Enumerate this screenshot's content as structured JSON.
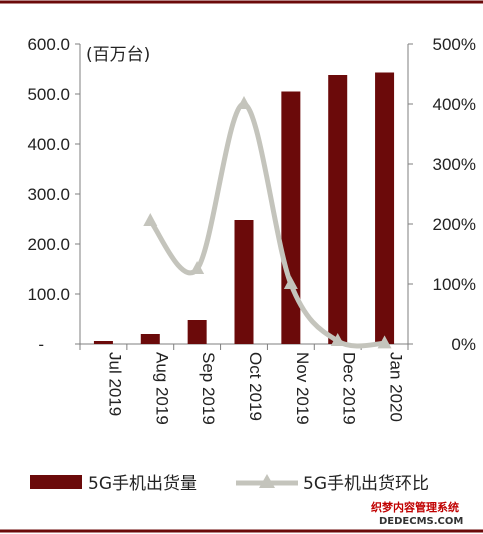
{
  "chart_data": {
    "type": "bar+line",
    "unit_label": "(百万台)",
    "categories": [
      "Jul 2019",
      "Aug 2019",
      "Sep 2019",
      "Oct 2019",
      "Nov 2019",
      "Dec 2019",
      "Jan 2020"
    ],
    "series": [
      {
        "name": "5G手机出货量",
        "type": "bar",
        "axis": "left",
        "color": "#6b0a0a",
        "values": [
          6,
          20,
          48,
          248,
          505,
          538,
          543
        ]
      },
      {
        "name": "5G手机出货环比",
        "type": "line",
        "axis": "right",
        "color": "#c4c4bc",
        "values": [
          null,
          205,
          125,
          400,
          100,
          5,
          1
        ]
      }
    ],
    "left_axis": {
      "min": 0,
      "max": 600,
      "ticks": [
        {
          "value": 0,
          "label": "-"
        },
        {
          "value": 100,
          "label": "100.0"
        },
        {
          "value": 200,
          "label": "200.0"
        },
        {
          "value": 300,
          "label": "300.0"
        },
        {
          "value": 400,
          "label": "400.0"
        },
        {
          "value": 500,
          "label": "500.0"
        },
        {
          "value": 600,
          "label": "600.0"
        }
      ]
    },
    "right_axis": {
      "min": 0,
      "max": 500,
      "ticks": [
        {
          "value": 0,
          "label": "0%"
        },
        {
          "value": 100,
          "label": "100%"
        },
        {
          "value": 200,
          "label": "200%"
        },
        {
          "value": 300,
          "label": "300%"
        },
        {
          "value": 400,
          "label": "400%"
        },
        {
          "value": 500,
          "label": "500%"
        }
      ]
    },
    "legend_position": "bottom",
    "grid": false
  },
  "watermark": {
    "line1": "织梦内容管理系统",
    "line2": "DEDECMS.COM"
  },
  "colors": {
    "frame": "#6b0a0a",
    "axis": "#7f7f7f"
  }
}
